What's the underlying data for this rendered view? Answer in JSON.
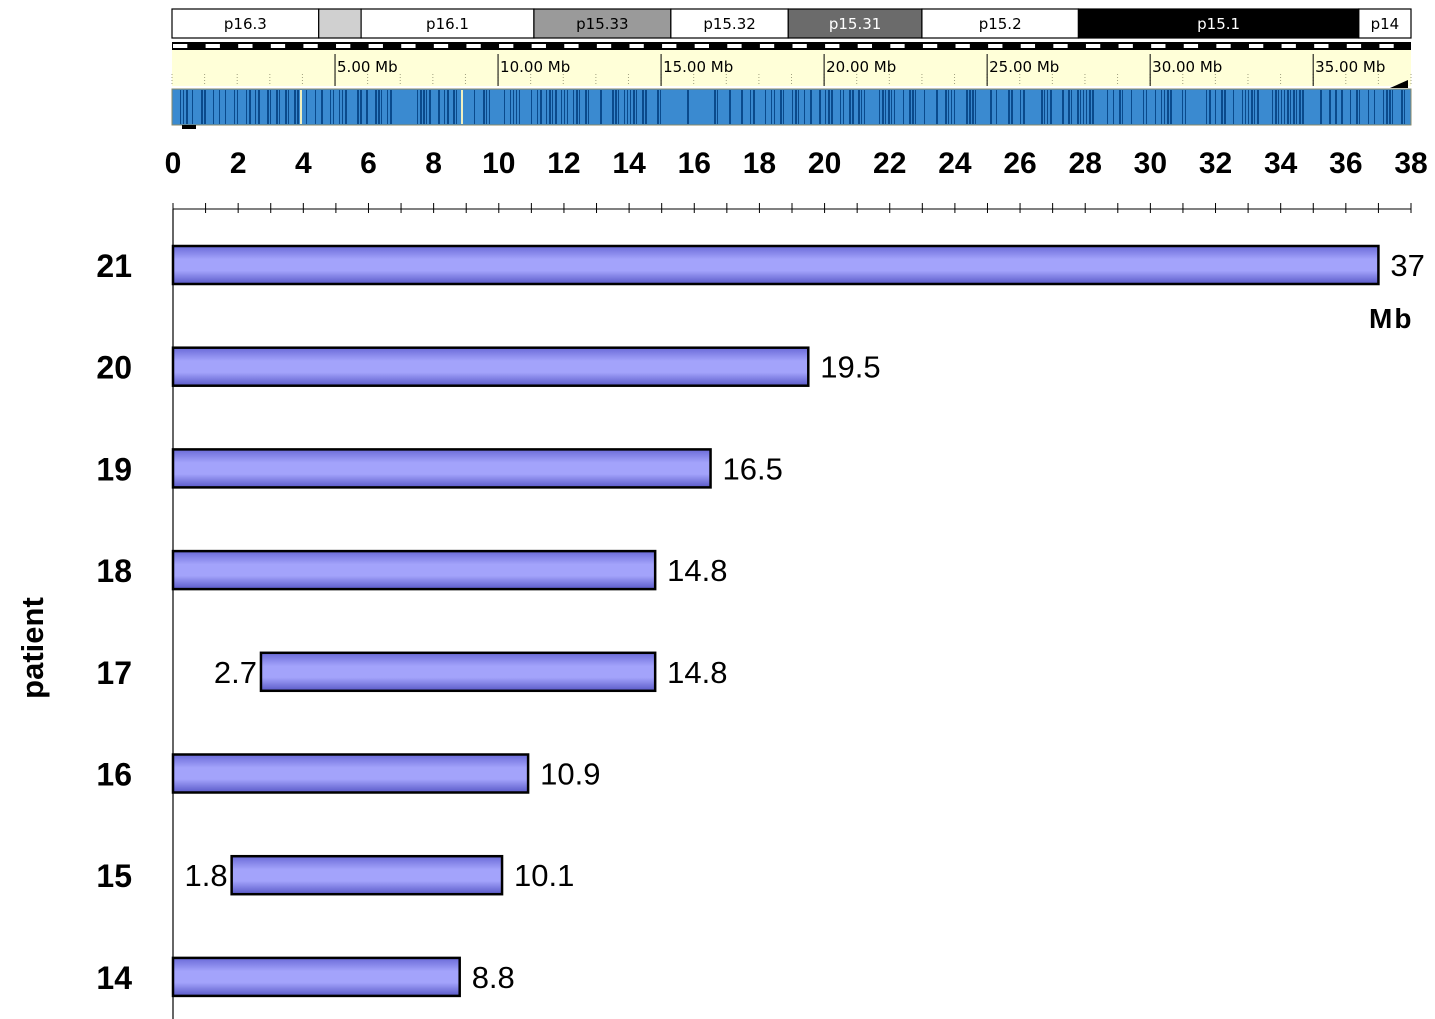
{
  "ideogram": {
    "bands": [
      {
        "label": "p16.3",
        "start": 0.0,
        "end": 4.5,
        "fill": "#ffffff",
        "text": "#000000"
      },
      {
        "label": "",
        "start": 4.5,
        "end": 5.8,
        "fill": "#d0d0d0",
        "text": "#000000"
      },
      {
        "label": "p16.1",
        "start": 5.8,
        "end": 11.1,
        "fill": "#ffffff",
        "text": "#000000"
      },
      {
        "label": "p15.33",
        "start": 11.1,
        "end": 15.3,
        "fill": "#9a9a9a",
        "text": "#000000"
      },
      {
        "label": "p15.32",
        "start": 15.3,
        "end": 18.9,
        "fill": "#ffffff",
        "text": "#000000"
      },
      {
        "label": "p15.31",
        "start": 18.9,
        "end": 23.0,
        "fill": "#6b6b6b",
        "text": "#ffffff"
      },
      {
        "label": "p15.2",
        "start": 23.0,
        "end": 27.8,
        "fill": "#ffffff",
        "text": "#000000"
      },
      {
        "label": "p15.1",
        "start": 27.8,
        "end": 36.4,
        "fill": "#000000",
        "text": "#ffffff"
      },
      {
        "label": "p14",
        "start": 36.4,
        "end": 38.0,
        "fill": "#ffffff",
        "text": "#000000"
      }
    ],
    "ruler_labels": [
      {
        "label": "5.00 Mb",
        "pos": 5
      },
      {
        "label": "10.00 Mb",
        "pos": 10
      },
      {
        "label": "15.00 Mb",
        "pos": 15
      },
      {
        "label": "20.00 Mb",
        "pos": 20
      },
      {
        "label": "25.00 Mb",
        "pos": 25
      },
      {
        "label": "30.00 Mb",
        "pos": 30
      },
      {
        "label": "35.00 Mb",
        "pos": 35
      }
    ],
    "colors": {
      "ruler_bg": "#ffffd8",
      "track_light": "#3a8ad0",
      "track_dark": "#0a4a8c"
    }
  },
  "chart_data": {
    "type": "bar",
    "orientation": "horizontal",
    "categories": [
      "21",
      "20",
      "19",
      "18",
      "17",
      "16",
      "15",
      "14"
    ],
    "series": [
      {
        "starts": [
          0,
          0,
          0,
          0,
          2.7,
          0,
          1.8,
          0
        ],
        "ends": [
          37,
          19.5,
          16.5,
          14.8,
          14.8,
          10.9,
          10.1,
          8.8
        ]
      }
    ],
    "start_labels": [
      "",
      "",
      "",
      "",
      "2.7",
      "",
      "1.8",
      ""
    ],
    "end_labels": [
      "37",
      "19.5",
      "16.5",
      "14.8",
      "14.8",
      "10.9",
      "10.1",
      "8.8"
    ],
    "x_ticks": [
      "0",
      "2",
      "4",
      "6",
      "8",
      "10",
      "12",
      "14",
      "16",
      "18",
      "20",
      "22",
      "24",
      "26",
      "28",
      "30",
      "32",
      "34",
      "36",
      "38"
    ],
    "xlim": [
      0,
      38
    ],
    "ylabel": "patient",
    "unit_label": "Mb",
    "bar_color": "#8c8cf0",
    "grid": false
  }
}
